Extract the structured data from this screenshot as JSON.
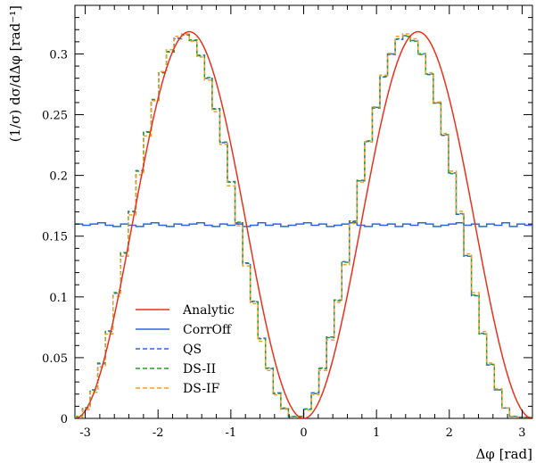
{
  "chart_data": {
    "type": "line",
    "xlabel": "Δφ [rad]",
    "ylabel": "(1/σ) dσ/dΔφ [rad⁻¹]",
    "xlim": [
      -3.14159,
      3.14159
    ],
    "ylim": [
      0,
      0.34
    ],
    "x_ticks": [
      {
        "value": -3,
        "label": "-3"
      },
      {
        "value": -2,
        "label": "-2"
      },
      {
        "value": -1,
        "label": "-1"
      },
      {
        "value": 0,
        "label": "0"
      },
      {
        "value": 1,
        "label": "1"
      },
      {
        "value": 2,
        "label": "2"
      },
      {
        "value": 3,
        "label": "3"
      }
    ],
    "y_ticks": [
      {
        "value": 0,
        "label": "0"
      },
      {
        "value": 0.05,
        "label": "0.05"
      },
      {
        "value": 0.1,
        "label": "0.1"
      },
      {
        "value": 0.15,
        "label": "0.15"
      },
      {
        "value": 0.2,
        "label": "0.2"
      },
      {
        "value": 0.25,
        "label": "0.25"
      },
      {
        "value": 0.3,
        "label": "0.3"
      }
    ],
    "legend_position": "lower-left",
    "series": [
      {
        "name": "Analytic",
        "color": "#e8321e",
        "style": "solid",
        "kind": "curve",
        "formula": "(1/(2π))·(1 − cos 2Δφ)",
        "x": [
          -3.1416,
          -3.0,
          -2.8,
          -2.6,
          -2.4,
          -2.2,
          -2.0,
          -1.8,
          -1.5708,
          -1.4,
          -1.2,
          -1.0,
          -0.8,
          -0.6,
          -0.4,
          -0.2,
          0.0,
          0.2,
          0.4,
          0.6,
          0.8,
          1.0,
          1.2,
          1.4,
          1.5708,
          1.8,
          2.0,
          2.2,
          2.4,
          2.6,
          2.8,
          3.0,
          3.1416
        ],
        "y": [
          0.0,
          0.0062,
          0.0311,
          0.0849,
          0.1421,
          0.2058,
          0.2617,
          0.3046,
          0.3183,
          0.3062,
          0.2657,
          0.2253,
          0.1619,
          0.101,
          0.0483,
          0.0126,
          0.0,
          0.0126,
          0.0483,
          0.101,
          0.1619,
          0.2253,
          0.2657,
          0.3062,
          0.3183,
          0.3046,
          0.2617,
          0.2058,
          0.1421,
          0.0849,
          0.0311,
          0.0062,
          0.0
        ]
      },
      {
        "name": "CorrOff",
        "color": "#2e64e6",
        "style": "solid",
        "kind": "histogram",
        "values": [
          0.16,
          0.159,
          0.16,
          0.161,
          0.159,
          0.158,
          0.16,
          0.159,
          0.158,
          0.16,
          0.161,
          0.159,
          0.158,
          0.16,
          0.159,
          0.16,
          0.161,
          0.159,
          0.158,
          0.16,
          0.159,
          0.16,
          0.158,
          0.159,
          0.161,
          0.159,
          0.16,
          0.158,
          0.159,
          0.16,
          0.161,
          0.159,
          0.16,
          0.158,
          0.159,
          0.16,
          0.161,
          0.159,
          0.158,
          0.16,
          0.159,
          0.16,
          0.158,
          0.16,
          0.159,
          0.161,
          0.16,
          0.158,
          0.159,
          0.16,
          0.161,
          0.159,
          0.16,
          0.158,
          0.16,
          0.159,
          0.161,
          0.158,
          0.16,
          0.159
        ]
      },
      {
        "name": "QS",
        "color": "#2e64e6",
        "style": "dashed",
        "kind": "histogram",
        "values": [
          0.0015,
          0.0085,
          0.0235,
          0.045,
          0.072,
          0.103,
          0.136,
          0.17,
          0.204,
          0.236,
          0.262,
          0.285,
          0.302,
          0.313,
          0.316,
          0.311,
          0.299,
          0.28,
          0.255,
          0.227,
          0.195,
          0.161,
          0.128,
          0.096,
          0.066,
          0.041,
          0.021,
          0.008,
          0.0015,
          0.0015,
          0.0075,
          0.021,
          0.041,
          0.067,
          0.097,
          0.129,
          0.162,
          0.196,
          0.228,
          0.256,
          0.281,
          0.3,
          0.312,
          0.315,
          0.311,
          0.3,
          0.283,
          0.26,
          0.233,
          0.202,
          0.168,
          0.134,
          0.101,
          0.07,
          0.044,
          0.0235,
          0.0085,
          0.0015,
          0.001,
          0.001
        ]
      },
      {
        "name": "DS-II",
        "color": "#2a9a2a",
        "style": "dashed",
        "kind": "histogram",
        "values": [
          0.0017,
          0.0088,
          0.0232,
          0.0455,
          0.0715,
          0.1035,
          0.1365,
          0.1705,
          0.2035,
          0.2355,
          0.2625,
          0.2845,
          0.3015,
          0.3125,
          0.3155,
          0.3115,
          0.2985,
          0.2805,
          0.2545,
          0.2275,
          0.1945,
          0.1615,
          0.1275,
          0.0965,
          0.0655,
          0.0415,
          0.0205,
          0.0085,
          0.0017,
          0.0017,
          0.0078,
          0.0205,
          0.0415,
          0.0665,
          0.0975,
          0.1285,
          0.1625,
          0.1955,
          0.2285,
          0.2555,
          0.2815,
          0.2995,
          0.3125,
          0.3145,
          0.3105,
          0.2995,
          0.2835,
          0.2595,
          0.2335,
          0.2015,
          0.1685,
          0.1335,
          0.1015,
          0.0695,
          0.0445,
          0.0235,
          0.0085,
          0.0017,
          0.001,
          0.001
        ]
      },
      {
        "name": "DS-IF",
        "color": "#f0a028",
        "style": "dashed",
        "kind": "histogram",
        "values": [
          0.0012,
          0.0072,
          0.0215,
          0.0425,
          0.0695,
          0.1005,
          0.1335,
          0.1675,
          0.2005,
          0.2325,
          0.2615,
          0.2855,
          0.3035,
          0.3145,
          0.3165,
          0.3105,
          0.2975,
          0.2785,
          0.2525,
          0.2255,
          0.1915,
          0.1585,
          0.1255,
          0.0945,
          0.0635,
          0.0395,
          0.0195,
          0.0075,
          0.0012,
          0.0012,
          0.0068,
          0.0195,
          0.0395,
          0.0645,
          0.0955,
          0.1265,
          0.1605,
          0.1945,
          0.2275,
          0.2565,
          0.2825,
          0.3005,
          0.3145,
          0.3165,
          0.3125,
          0.3005,
          0.2845,
          0.2605,
          0.2345,
          0.2035,
          0.1705,
          0.1355,
          0.1035,
          0.0715,
          0.0455,
          0.0245,
          0.0085,
          0.0012,
          0.0008,
          0.0008
        ]
      }
    ]
  }
}
